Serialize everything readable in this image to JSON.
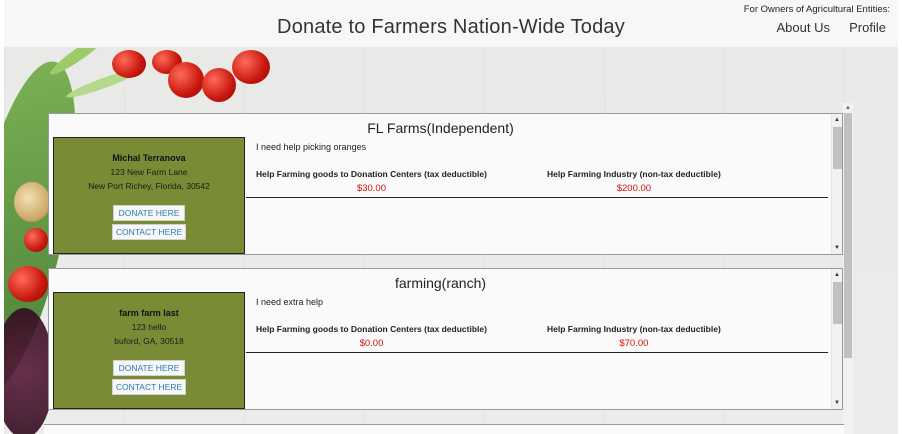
{
  "header": {
    "title": "Donate to Farmers Nation-Wide Today",
    "owners_link": "For Owners of Agricultural Entities:",
    "nav": [
      {
        "label": "About Us"
      },
      {
        "label": "Profile"
      }
    ]
  },
  "colors": {
    "farmer_box": "#798c35",
    "amount": "#d0100a",
    "button_text": "#2a7ab8"
  },
  "farms": [
    {
      "title": "FL Farms(Independent)",
      "need": "I need help picking oranges",
      "owner": {
        "name": "Michal Terranova",
        "address1": "123 New Farm Lane",
        "address2": "New Port Richey, Florida, 30542"
      },
      "donate_label": "DONATE HERE",
      "contact_label": "CONTACT HERE",
      "help_goods_label": "Help Farming goods to Donation Centers (tax deductible)",
      "help_goods_amount": "$30.00",
      "help_industry_label": "Help Farming Industry (non-tax deductible)",
      "help_industry_amount": "$200.00"
    },
    {
      "title": "farming(ranch)",
      "need": "I need extra help",
      "owner": {
        "name": "farm farm last",
        "address1": "123 hello",
        "address2": "buford, GA, 30518"
      },
      "donate_label": "DONATE HERE",
      "contact_label": "CONTACT HERE",
      "help_goods_label": "Help Farming goods to Donation Centers (tax deductible)",
      "help_goods_amount": "$0.00",
      "help_industry_label": "Help Farming Industry (non-tax deductible)",
      "help_industry_amount": "$70.00"
    }
  ]
}
